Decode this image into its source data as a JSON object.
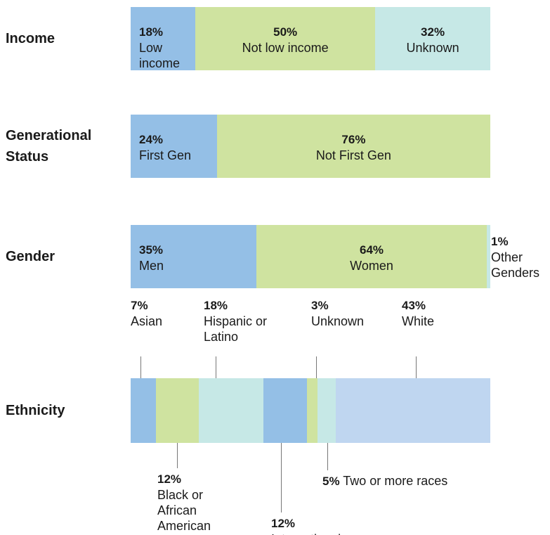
{
  "chart_data": [
    {
      "type": "bar",
      "stacked": true,
      "xlim": [
        0,
        100
      ],
      "categories": [
        "Income"
      ],
      "series": [
        {
          "name": "Low income",
          "color": "#94bfe6",
          "values": [
            18
          ],
          "value_labels": [
            "18%"
          ]
        },
        {
          "name": "Not low income",
          "color": "#cfe3a0",
          "values": [
            50
          ],
          "value_labels": [
            "50%"
          ]
        },
        {
          "name": "Unknown",
          "color": "#c6e8e6",
          "values": [
            32
          ],
          "value_labels": [
            "32%"
          ]
        }
      ]
    },
    {
      "type": "bar",
      "stacked": true,
      "xlim": [
        0,
        100
      ],
      "categories": [
        "Generational Status"
      ],
      "series": [
        {
          "name": "First Gen",
          "color": "#94bfe6",
          "values": [
            24
          ],
          "value_labels": [
            "24%"
          ]
        },
        {
          "name": "Not First Gen",
          "color": "#cfe3a0",
          "values": [
            76
          ],
          "value_labels": [
            "76%"
          ]
        }
      ]
    },
    {
      "type": "bar",
      "stacked": true,
      "xlim": [
        0,
        100
      ],
      "categories": [
        "Gender"
      ],
      "series": [
        {
          "name": "Men",
          "color": "#94bfe6",
          "values": [
            35
          ],
          "value_labels": [
            "35%"
          ]
        },
        {
          "name": "Women",
          "color": "#cfe3a0",
          "values": [
            64
          ],
          "value_labels": [
            "64%"
          ]
        },
        {
          "name": "Other Genders",
          "color": "#c6e8e6",
          "values": [
            1
          ],
          "value_labels": [
            "1%"
          ]
        }
      ]
    },
    {
      "type": "bar",
      "stacked": true,
      "xlim": [
        0,
        100
      ],
      "categories": [
        "Ethnicity"
      ],
      "series": [
        {
          "name": "Asian",
          "color": "#94bfe6",
          "values": [
            7
          ],
          "value_labels": [
            "7%"
          ]
        },
        {
          "name": "Black or African American",
          "color": "#cfe3a0",
          "values": [
            12
          ],
          "value_labels": [
            "12%"
          ]
        },
        {
          "name": "Hispanic or Latino",
          "color": "#c6e8e6",
          "values": [
            18
          ],
          "value_labels": [
            "18%"
          ]
        },
        {
          "name": "International",
          "color": "#94bfe6",
          "values": [
            12
          ],
          "value_labels": [
            "12%"
          ]
        },
        {
          "name": "Unknown",
          "color": "#cfe3a0",
          "values": [
            3
          ],
          "value_labels": [
            "3%"
          ]
        },
        {
          "name": "Two or more races",
          "color": "#c6e8e6",
          "values": [
            5
          ],
          "value_labels": [
            "5%"
          ]
        },
        {
          "name": "White",
          "color": "#bfd6f0",
          "values": [
            43
          ],
          "value_labels": [
            "43%"
          ]
        }
      ]
    }
  ]
}
